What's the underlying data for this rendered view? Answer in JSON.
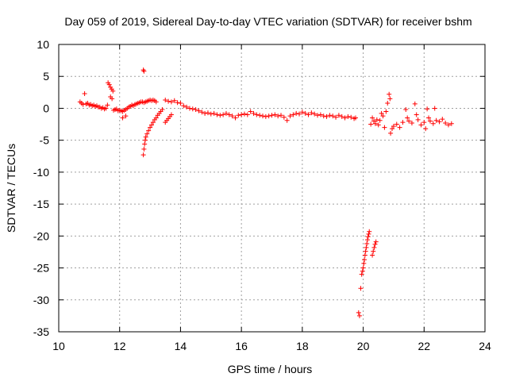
{
  "chart_data": {
    "type": "scatter",
    "title": "Day 059 of 2019, Sidereal Day-to-day VTEC variation (SDTVAR) for receiver bshm",
    "xlabel": "GPS time / hours",
    "ylabel": "SDTVAR / TECUs",
    "xlim": [
      10,
      24
    ],
    "ylim": [
      -35,
      10
    ],
    "xticks": [
      10,
      12,
      14,
      16,
      18,
      20,
      22,
      24
    ],
    "yticks": [
      10,
      5,
      0,
      -5,
      -10,
      -15,
      -20,
      -25,
      -30,
      -35
    ],
    "grid": true,
    "marker": "plus",
    "color": "#ff0000",
    "series": [
      {
        "name": "SDTVAR",
        "points": [
          [
            10.7,
            1.0
          ],
          [
            10.75,
            0.8
          ],
          [
            10.8,
            0.6
          ],
          [
            10.85,
            2.3
          ],
          [
            10.9,
            0.7
          ],
          [
            10.95,
            0.8
          ],
          [
            11.0,
            0.5
          ],
          [
            11.05,
            0.6
          ],
          [
            11.1,
            0.4
          ],
          [
            11.15,
            0.5
          ],
          [
            11.2,
            0.3
          ],
          [
            11.25,
            0.4
          ],
          [
            11.3,
            0.2
          ],
          [
            11.35,
            0.2
          ],
          [
            11.4,
            0.0
          ],
          [
            11.45,
            0.1
          ],
          [
            11.5,
            -0.1
          ],
          [
            11.55,
            0.0
          ],
          [
            11.6,
            0.5
          ],
          [
            11.62,
            4.0
          ],
          [
            11.66,
            3.7
          ],
          [
            11.7,
            3.3
          ],
          [
            11.74,
            3.0
          ],
          [
            11.78,
            2.7
          ],
          [
            11.7,
            1.8
          ],
          [
            11.75,
            1.5
          ],
          [
            11.8,
            -0.3
          ],
          [
            11.85,
            -0.2
          ],
          [
            11.9,
            -0.1
          ],
          [
            11.95,
            -0.4
          ],
          [
            12.0,
            -0.3
          ],
          [
            12.05,
            -0.4
          ],
          [
            12.1,
            -0.5
          ],
          [
            12.15,
            -0.3
          ],
          [
            12.2,
            -0.2
          ],
          [
            12.25,
            0.0
          ],
          [
            12.3,
            0.2
          ],
          [
            12.35,
            0.3
          ],
          [
            12.4,
            0.5
          ],
          [
            12.45,
            0.4
          ],
          [
            12.5,
            0.6
          ],
          [
            12.55,
            0.7
          ],
          [
            12.6,
            0.8
          ],
          [
            12.65,
            0.9
          ],
          [
            12.7,
            1.0
          ],
          [
            12.75,
            1.0
          ],
          [
            12.8,
            0.9
          ],
          [
            12.85,
            1.0
          ],
          [
            12.9,
            1.1
          ],
          [
            12.95,
            1.2
          ],
          [
            13.0,
            1.3
          ],
          [
            13.05,
            1.2
          ],
          [
            13.1,
            1.3
          ],
          [
            13.15,
            1.2
          ],
          [
            13.2,
            1.0
          ],
          [
            12.1,
            -1.5
          ],
          [
            12.2,
            -1.2
          ],
          [
            12.78,
            6.0
          ],
          [
            12.8,
            5.8
          ],
          [
            12.78,
            -7.3
          ],
          [
            12.8,
            -6.4
          ],
          [
            12.82,
            -5.6
          ],
          [
            12.84,
            -5.0
          ],
          [
            12.86,
            -4.5
          ],
          [
            12.9,
            -4.0
          ],
          [
            12.95,
            -3.5
          ],
          [
            13.0,
            -3.0
          ],
          [
            13.05,
            -2.6
          ],
          [
            13.1,
            -2.2
          ],
          [
            13.15,
            -1.8
          ],
          [
            13.2,
            -1.5
          ],
          [
            13.25,
            -1.1
          ],
          [
            13.3,
            -0.8
          ],
          [
            13.35,
            -0.5
          ],
          [
            13.4,
            -0.2
          ],
          [
            13.5,
            -2.2
          ],
          [
            13.55,
            -1.9
          ],
          [
            13.6,
            -1.6
          ],
          [
            13.65,
            -1.3
          ],
          [
            13.7,
            -1.0
          ],
          [
            13.5,
            1.3
          ],
          [
            13.6,
            1.1
          ],
          [
            13.7,
            1.0
          ],
          [
            13.8,
            1.2
          ],
          [
            13.9,
            0.9
          ],
          [
            14.0,
            0.8
          ],
          [
            14.1,
            0.4
          ],
          [
            14.2,
            0.2
          ],
          [
            14.3,
            0.0
          ],
          [
            14.4,
            -0.1
          ],
          [
            14.5,
            -0.2
          ],
          [
            14.6,
            -0.4
          ],
          [
            14.7,
            -0.6
          ],
          [
            14.8,
            -0.8
          ],
          [
            14.9,
            -0.7
          ],
          [
            15.0,
            -0.9
          ],
          [
            15.1,
            -0.8
          ],
          [
            15.2,
            -1.0
          ],
          [
            15.3,
            -1.1
          ],
          [
            15.4,
            -1.0
          ],
          [
            15.5,
            -0.8
          ],
          [
            15.6,
            -1.0
          ],
          [
            15.7,
            -1.2
          ],
          [
            15.8,
            -1.5
          ],
          [
            15.9,
            -1.1
          ],
          [
            16.0,
            -1.0
          ],
          [
            16.1,
            -0.9
          ],
          [
            16.2,
            -1.0
          ],
          [
            16.3,
            -0.5
          ],
          [
            16.4,
            -0.8
          ],
          [
            16.5,
            -1.0
          ],
          [
            16.6,
            -1.1
          ],
          [
            16.7,
            -1.2
          ],
          [
            16.8,
            -1.3
          ],
          [
            16.9,
            -1.2
          ],
          [
            17.0,
            -1.1
          ],
          [
            17.1,
            -1.0
          ],
          [
            17.2,
            -1.2
          ],
          [
            17.3,
            -1.1
          ],
          [
            17.4,
            -1.4
          ],
          [
            17.5,
            -1.9
          ],
          [
            17.6,
            -1.2
          ],
          [
            17.7,
            -1.0
          ],
          [
            17.8,
            -0.8
          ],
          [
            17.9,
            -0.9
          ],
          [
            18.0,
            -0.6
          ],
          [
            18.1,
            -0.8
          ],
          [
            18.2,
            -1.0
          ],
          [
            18.3,
            -0.7
          ],
          [
            18.4,
            -0.9
          ],
          [
            18.5,
            -1.1
          ],
          [
            18.6,
            -1.0
          ],
          [
            18.7,
            -1.2
          ],
          [
            18.8,
            -1.3
          ],
          [
            18.9,
            -1.1
          ],
          [
            19.0,
            -1.2
          ],
          [
            19.1,
            -1.4
          ],
          [
            19.2,
            -1.1
          ],
          [
            19.3,
            -1.3
          ],
          [
            19.4,
            -1.5
          ],
          [
            19.5,
            -1.3
          ],
          [
            19.6,
            -1.4
          ],
          [
            19.7,
            -1.6
          ],
          [
            19.75,
            -1.5
          ],
          [
            19.85,
            -32.0
          ],
          [
            19.88,
            -32.5
          ],
          [
            19.92,
            -28.2
          ],
          [
            19.95,
            -26.0
          ],
          [
            19.98,
            -25.5
          ],
          [
            20.0,
            -25.0
          ],
          [
            20.02,
            -24.3
          ],
          [
            20.04,
            -23.7
          ],
          [
            20.06,
            -23.0
          ],
          [
            20.08,
            -22.4
          ],
          [
            20.1,
            -21.8
          ],
          [
            20.12,
            -21.2
          ],
          [
            20.14,
            -20.6
          ],
          [
            20.16,
            -20.1
          ],
          [
            20.18,
            -19.7
          ],
          [
            20.2,
            -19.3
          ],
          [
            20.3,
            -23.0
          ],
          [
            20.33,
            -22.4
          ],
          [
            20.36,
            -21.8
          ],
          [
            20.39,
            -21.3
          ],
          [
            20.42,
            -20.9
          ],
          [
            20.25,
            -2.5
          ],
          [
            20.3,
            -1.5
          ],
          [
            20.35,
            -2.0
          ],
          [
            20.4,
            -2.4
          ],
          [
            20.45,
            -1.8
          ],
          [
            20.5,
            -2.6
          ],
          [
            20.55,
            -1.9
          ],
          [
            20.6,
            -0.8
          ],
          [
            20.65,
            -1.2
          ],
          [
            20.7,
            -3.0
          ],
          [
            20.75,
            -0.5
          ],
          [
            20.8,
            0.8
          ],
          [
            20.85,
            2.2
          ],
          [
            20.88,
            1.5
          ],
          [
            20.9,
            -3.9
          ],
          [
            20.95,
            -3.2
          ],
          [
            21.0,
            -2.8
          ],
          [
            21.1,
            -2.5
          ],
          [
            21.2,
            -3.0
          ],
          [
            21.3,
            -2.2
          ],
          [
            21.4,
            -0.2
          ],
          [
            21.45,
            -1.5
          ],
          [
            21.5,
            -2.0
          ],
          [
            21.6,
            -2.3
          ],
          [
            21.7,
            0.7
          ],
          [
            21.75,
            -1.0
          ],
          [
            21.8,
            -1.8
          ],
          [
            21.9,
            -2.6
          ],
          [
            22.0,
            -2.2
          ],
          [
            22.05,
            -3.2
          ],
          [
            22.1,
            -0.1
          ],
          [
            22.15,
            -1.5
          ],
          [
            22.2,
            -2.0
          ],
          [
            22.3,
            -2.4
          ],
          [
            22.35,
            0.0
          ],
          [
            22.4,
            -1.9
          ],
          [
            22.5,
            -2.1
          ],
          [
            22.6,
            -1.7
          ],
          [
            22.7,
            -2.3
          ],
          [
            22.8,
            -2.6
          ],
          [
            22.9,
            -2.4
          ]
        ]
      }
    ]
  }
}
